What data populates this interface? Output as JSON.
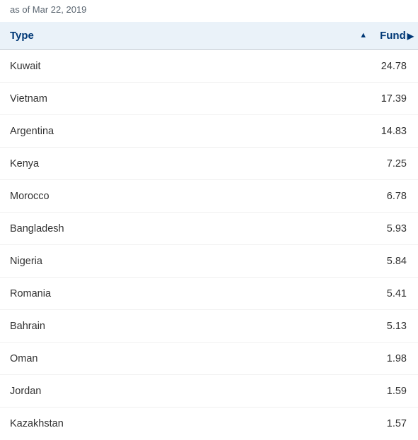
{
  "asOf": "as of Mar 22, 2019",
  "columns": {
    "type": "Type",
    "fund": "Fund"
  },
  "rows": [
    {
      "type": "Kuwait",
      "fund": "24.78"
    },
    {
      "type": "Vietnam",
      "fund": "17.39"
    },
    {
      "type": "Argentina",
      "fund": "14.83"
    },
    {
      "type": "Kenya",
      "fund": "7.25"
    },
    {
      "type": "Morocco",
      "fund": "6.78"
    },
    {
      "type": "Bangladesh",
      "fund": "5.93"
    },
    {
      "type": "Nigeria",
      "fund": "5.84"
    },
    {
      "type": "Romania",
      "fund": "5.41"
    },
    {
      "type": "Bahrain",
      "fund": "5.13"
    },
    {
      "type": "Oman",
      "fund": "1.98"
    },
    {
      "type": "Jordan",
      "fund": "1.59"
    },
    {
      "type": "Kazakhstan",
      "fund": "1.57"
    }
  ],
  "styling": {
    "header_bg": "#eaf2f9",
    "header_text_color": "#003876",
    "body_text_color": "#323232",
    "asof_text_color": "#5a6570",
    "row_border_color": "#f0f0f0",
    "header_border_color": "#c9ced3",
    "font_size_header": 15,
    "font_size_body": 14.5,
    "font_size_asof": 13
  }
}
